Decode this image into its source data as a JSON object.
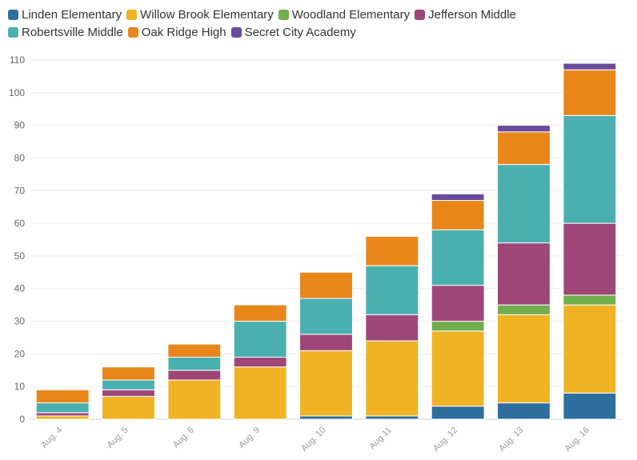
{
  "chart_data": {
    "type": "bar",
    "stacked": true,
    "categories": [
      "Aug. 4",
      "Aug. 5",
      "Aug. 6",
      "Aug. 9",
      "Aug. 10",
      "Aug 11",
      "Aug. 12",
      "Aug. 13",
      "Aug. 16"
    ],
    "series": [
      {
        "name": "Linden Elementary",
        "color": "#2e6f9e",
        "values": [
          0,
          0,
          0,
          0,
          1,
          1,
          4,
          5,
          8
        ]
      },
      {
        "name": "Willow Brook Elementary",
        "color": "#f0b323",
        "values": [
          1,
          7,
          12,
          16,
          20,
          23,
          23,
          27,
          27
        ]
      },
      {
        "name": "Woodland Elementary",
        "color": "#72ad4e",
        "values": [
          0,
          0,
          0,
          0,
          0,
          0,
          3,
          3,
          3
        ]
      },
      {
        "name": "Jefferson Middle",
        "color": "#9e4678",
        "values": [
          1,
          2,
          3,
          3,
          5,
          8,
          11,
          19,
          22
        ]
      },
      {
        "name": "Robertsville Middle",
        "color": "#4aafaf",
        "values": [
          3,
          3,
          4,
          11,
          11,
          15,
          17,
          24,
          33
        ]
      },
      {
        "name": "Oak Ridge High",
        "color": "#e8861a",
        "values": [
          4,
          4,
          4,
          5,
          8,
          9,
          9,
          10,
          14
        ]
      },
      {
        "name": "Secret City Academy",
        "color": "#6a4a9b",
        "values": [
          0,
          0,
          0,
          0,
          0,
          0,
          2,
          2,
          2
        ]
      }
    ],
    "ylim": [
      0,
      110
    ],
    "yticks": [
      0,
      10,
      20,
      30,
      40,
      50,
      60,
      70,
      80,
      90,
      100,
      110
    ],
    "grid": true,
    "legend": "top-left",
    "title": "",
    "xlabel": "",
    "ylabel": ""
  }
}
